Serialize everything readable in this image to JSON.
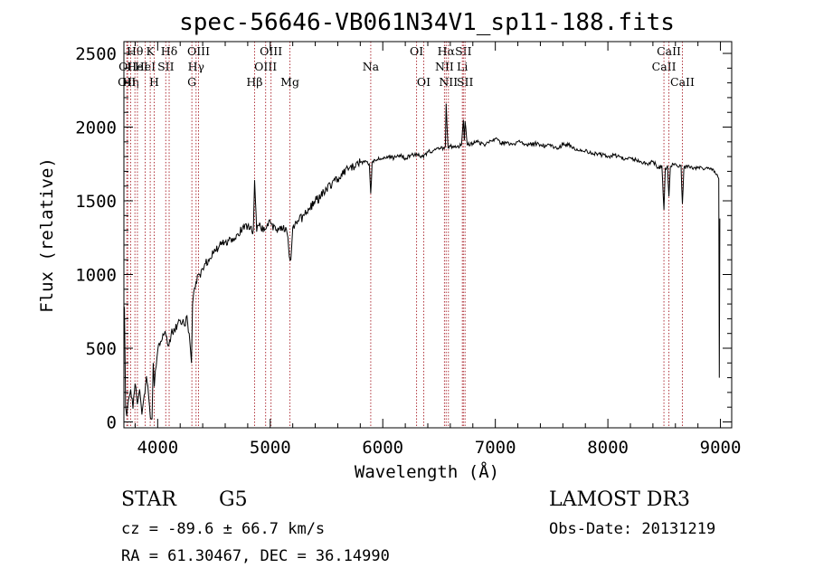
{
  "chart_data": {
    "type": "line",
    "title": "spec-56646-VB061N34V1_sp11-188.fits",
    "xlabel": "Wavelength (Å)",
    "ylabel": "Flux (relative)",
    "xlim": [
      3700,
      9100
    ],
    "ylim": [
      -40,
      2580
    ],
    "xticks": [
      4000,
      5000,
      6000,
      7000,
      8000,
      9000
    ],
    "yticks": [
      0,
      500,
      1000,
      1500,
      2000,
      2500
    ],
    "series": [
      {
        "name": "flux",
        "x": [
          3705,
          3715,
          3725,
          3740,
          3760,
          3780,
          3800,
          3820,
          3840,
          3860,
          3880,
          3900,
          3920,
          3935,
          3950,
          3960,
          3970,
          3980,
          4000,
          4020,
          4040,
          4060,
          4080,
          4100,
          4120,
          4150,
          4180,
          4200,
          4220,
          4240,
          4260,
          4280,
          4300,
          4310,
          4320,
          4340,
          4360,
          4380,
          4400,
          4450,
          4500,
          4550,
          4600,
          4650,
          4700,
          4750,
          4800,
          4850,
          4861,
          4880,
          4900,
          4950,
          5000,
          5050,
          5100,
          5150,
          5170,
          5183,
          5200,
          5250,
          5300,
          5350,
          5400,
          5450,
          5500,
          5550,
          5600,
          5650,
          5700,
          5750,
          5800,
          5850,
          5880,
          5893,
          5905,
          5950,
          6000,
          6050,
          6100,
          6150,
          6200,
          6250,
          6300,
          6350,
          6400,
          6450,
          6500,
          6540,
          6556,
          6563,
          6570,
          6580,
          6600,
          6650,
          6700,
          6716,
          6725,
          6731,
          6750,
          6800,
          6850,
          6900,
          6950,
          7000,
          7050,
          7100,
          7150,
          7200,
          7250,
          7300,
          7350,
          7400,
          7450,
          7500,
          7550,
          7600,
          7650,
          7700,
          7750,
          7800,
          7850,
          7900,
          7950,
          8000,
          8050,
          8100,
          8150,
          8200,
          8250,
          8300,
          8350,
          8400,
          8450,
          8480,
          8498,
          8510,
          8530,
          8542,
          8555,
          8580,
          8620,
          8650,
          8662,
          8675,
          8700,
          8750,
          8800,
          8850,
          8900,
          8950,
          8970,
          8985,
          8990,
          8995
        ],
        "y": [
          780,
          100,
          40,
          150,
          220,
          90,
          260,
          120,
          220,
          50,
          180,
          310,
          170,
          30,
          20,
          400,
          240,
          350,
          480,
          520,
          560,
          600,
          580,
          520,
          600,
          620,
          670,
          690,
          680,
          650,
          720,
          600,
          400,
          800,
          880,
          950,
          1000,
          980,
          1040,
          1100,
          1150,
          1200,
          1220,
          1240,
          1270,
          1300,
          1330,
          1300,
          1640,
          1290,
          1330,
          1300,
          1360,
          1300,
          1330,
          1280,
          1120,
          1100,
          1320,
          1360,
          1400,
          1450,
          1500,
          1530,
          1580,
          1620,
          1650,
          1680,
          1720,
          1730,
          1760,
          1770,
          1750,
          1550,
          1760,
          1780,
          1790,
          1800,
          1790,
          1810,
          1790,
          1810,
          1820,
          1800,
          1830,
          1840,
          1850,
          1860,
          1870,
          2160,
          2010,
          1860,
          1870,
          1860,
          1880,
          2050,
          1910,
          2040,
          1880,
          1890,
          1900,
          1880,
          1910,
          1920,
          1890,
          1890,
          1880,
          1900,
          1890,
          1880,
          1890,
          1880,
          1870,
          1880,
          1850,
          1880,
          1880,
          1860,
          1840,
          1840,
          1820,
          1820,
          1810,
          1800,
          1810,
          1800,
          1780,
          1790,
          1780,
          1760,
          1750,
          1770,
          1720,
          1740,
          1440,
          1720,
          1740,
          1530,
          1730,
          1750,
          1730,
          1740,
          1480,
          1720,
          1740,
          1720,
          1730,
          1710,
          1720,
          1700,
          1680,
          1650,
          300,
          1380
        ]
      }
    ],
    "lines": [
      {
        "x": 3726,
        "label": "OII",
        "row": 2
      },
      {
        "x": 3734,
        "label": "OII",
        "row": 1
      },
      {
        "x": 3760,
        "label": "Hη",
        "row": 2
      },
      {
        "x": 3798,
        "label": "Hθ",
        "row": 0
      },
      {
        "x": 3820,
        "label": "HeI",
        "row": 1
      },
      {
        "x": 3889,
        "label": "HeI",
        "row": 1
      },
      {
        "x": 3934,
        "label": "K",
        "row": 0
      },
      {
        "x": 3969,
        "label": "H",
        "row": 2
      },
      {
        "x": 4072,
        "label": "SII",
        "row": 1
      },
      {
        "x": 4102,
        "label": "Hδ",
        "row": 0
      },
      {
        "x": 4304,
        "label": "G",
        "row": 2
      },
      {
        "x": 4341,
        "label": "Hγ",
        "row": 1
      },
      {
        "x": 4363,
        "label": "OIII",
        "row": 0
      },
      {
        "x": 4861,
        "label": "Hβ",
        "row": 2
      },
      {
        "x": 4959,
        "label": "OIII",
        "row": 1
      },
      {
        "x": 5007,
        "label": "OIII",
        "row": 0
      },
      {
        "x": 5175,
        "label": "Mg",
        "row": 2
      },
      {
        "x": 5893,
        "label": "Na",
        "row": 1
      },
      {
        "x": 6300,
        "label": "OI",
        "row": 0
      },
      {
        "x": 6364,
        "label": "OI",
        "row": 2
      },
      {
        "x": 6548,
        "label": "NII",
        "row": 1
      },
      {
        "x": 6563,
        "label": "Hα",
        "row": 0
      },
      {
        "x": 6583,
        "label": "NII",
        "row": 2
      },
      {
        "x": 6707,
        "label": "Li",
        "row": 1
      },
      {
        "x": 6716,
        "label": "SII",
        "row": 0
      },
      {
        "x": 6731,
        "label": "SII",
        "row": 2
      },
      {
        "x": 8498,
        "label": "CaII",
        "row": 1
      },
      {
        "x": 8542,
        "label": "CaII",
        "row": 0
      },
      {
        "x": 8662,
        "label": "CaII",
        "row": 2
      }
    ]
  },
  "info": {
    "class": "STAR",
    "subclass": "G5",
    "survey": "LAMOST DR3",
    "cz": "cz = -89.6 ± 66.7 km/s",
    "obs_date": "Obs-Date: 20131219",
    "radec": "RA =  61.30467, DEC =  36.14990"
  },
  "colors": {
    "line_marker": "#b0343c",
    "spectrum": "#000000",
    "axes": "#000000",
    "background": "#ffffff"
  }
}
